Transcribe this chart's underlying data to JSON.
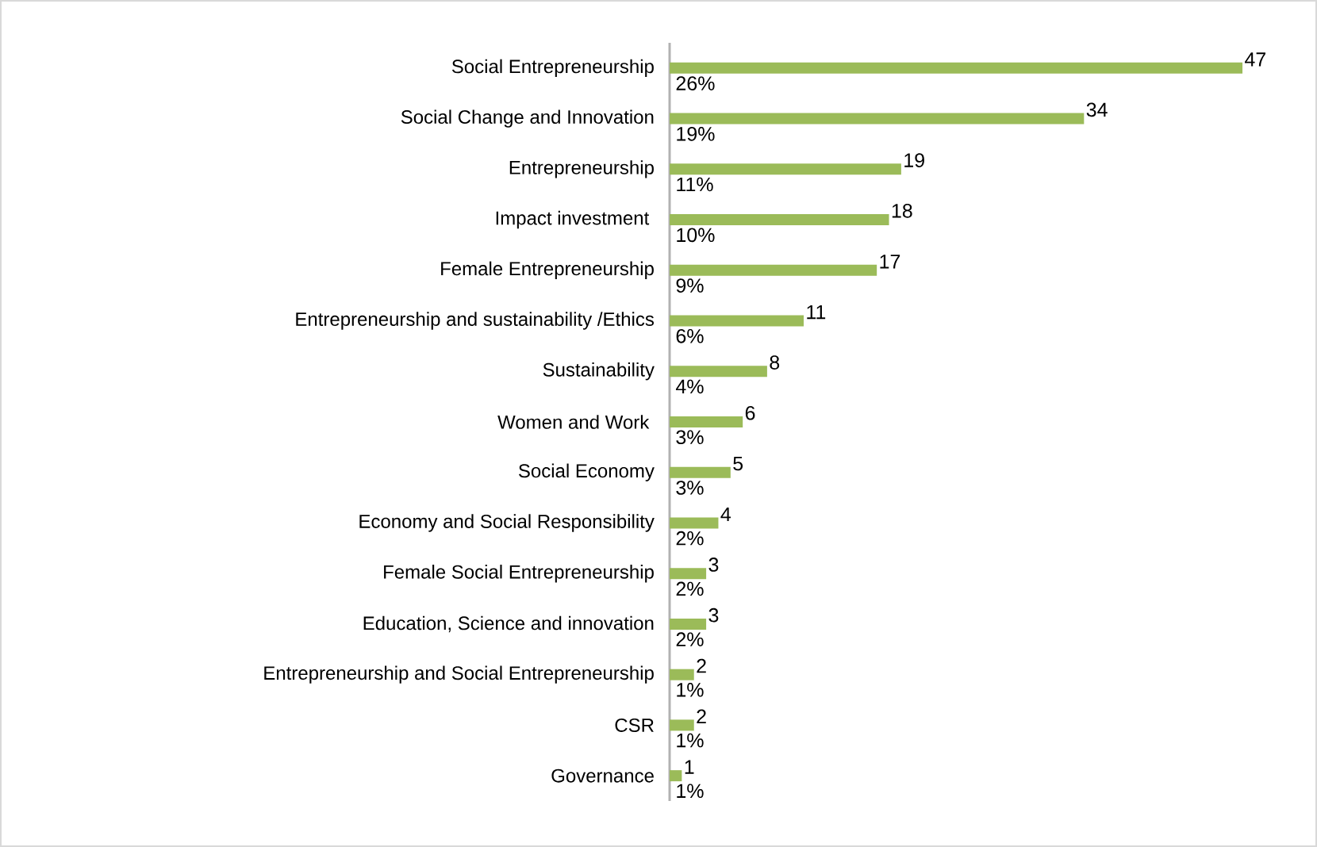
{
  "chart_data": {
    "type": "bar",
    "orientation": "horizontal",
    "data_labels": true,
    "color": "#9bbb59",
    "categories": [
      "Social Entrepreneurship",
      "Social Change and Innovation",
      "Entrepreneurship",
      "Impact investment ",
      "Female Entrepreneurship",
      "Entrepreneurship and sustainability /Ethics",
      "Sustainability",
      "Women and Work ",
      "Social Economy",
      "Economy and Social Responsibility",
      "Female Social Entrepreneurship",
      "Education, Science and innovation",
      "Entrepreneurship and Social Entrepreneurship",
      "CSR",
      "Governance"
    ],
    "values": [
      47,
      34,
      19,
      18,
      17,
      11,
      8,
      6,
      5,
      4,
      3,
      3,
      2,
      2,
      1
    ],
    "annotations": [
      "26%",
      "19%",
      "11%",
      "10%",
      "9%",
      "6%",
      "4%",
      "3%",
      "3%",
      "2%",
      "2%",
      "2%",
      "1%",
      "1%",
      "1%"
    ]
  }
}
